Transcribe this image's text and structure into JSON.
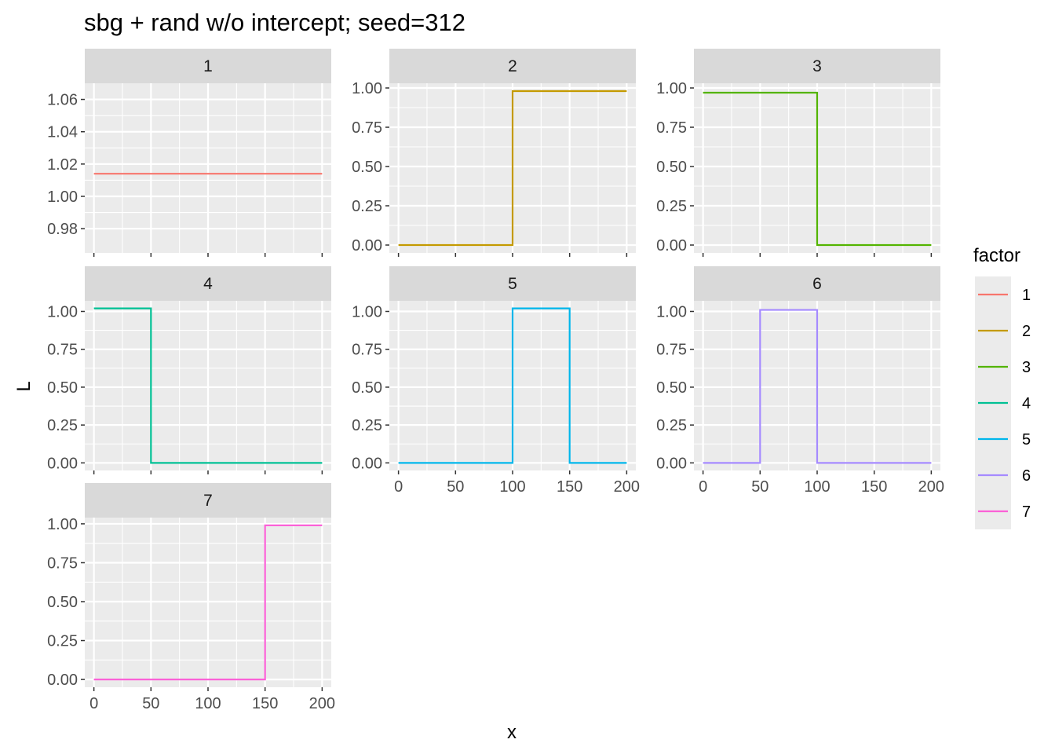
{
  "chart_data": {
    "type": "line",
    "title": "sbg + rand w/o intercept; seed=312",
    "xlabel": "x",
    "ylabel": "L",
    "facets": [
      {
        "label": "1",
        "color": "#F8766D",
        "ylim": [
          0.965,
          1.07
        ],
        "yticks": [
          0.98,
          1.0,
          1.02,
          1.04,
          1.06
        ],
        "yticklabels": [
          "0.98",
          "1.00",
          "1.02",
          "1.04",
          "1.06"
        ],
        "x": [
          0,
          200
        ],
        "y": [
          1.014,
          1.014
        ]
      },
      {
        "label": "2",
        "color": "#C49A00",
        "ylim": [
          -0.05,
          1.03
        ],
        "yticks": [
          0,
          0.25,
          0.5,
          0.75,
          1.0
        ],
        "yticklabels": [
          "0.00",
          "0.25",
          "0.50",
          "0.75",
          "1.00"
        ],
        "x": [
          0,
          100,
          100,
          200
        ],
        "y": [
          0.0,
          0.0,
          0.98,
          0.98
        ]
      },
      {
        "label": "3",
        "color": "#53B400",
        "ylim": [
          -0.05,
          1.03
        ],
        "yticks": [
          0,
          0.25,
          0.5,
          0.75,
          1.0
        ],
        "yticklabels": [
          "0.00",
          "0.25",
          "0.50",
          "0.75",
          "1.00"
        ],
        "x": [
          0,
          100,
          100,
          200
        ],
        "y": [
          0.97,
          0.97,
          0.0,
          0.0
        ]
      },
      {
        "label": "4",
        "color": "#00C094",
        "ylim": [
          -0.05,
          1.07
        ],
        "yticks": [
          0,
          0.25,
          0.5,
          0.75,
          1.0
        ],
        "yticklabels": [
          "0.00",
          "0.25",
          "0.50",
          "0.75",
          "1.00"
        ],
        "x": [
          0,
          50,
          50,
          200
        ],
        "y": [
          1.02,
          1.02,
          0.0,
          0.0
        ]
      },
      {
        "label": "5",
        "color": "#00B6EB",
        "ylim": [
          -0.05,
          1.07
        ],
        "yticks": [
          0,
          0.25,
          0.5,
          0.75,
          1.0
        ],
        "yticklabels": [
          "0.00",
          "0.25",
          "0.50",
          "0.75",
          "1.00"
        ],
        "x": [
          0,
          100,
          100,
          150,
          150,
          200
        ],
        "y": [
          0.0,
          0.0,
          1.02,
          1.02,
          0.0,
          0.0
        ]
      },
      {
        "label": "6",
        "color": "#A58AFF",
        "ylim": [
          -0.05,
          1.07
        ],
        "yticks": [
          0,
          0.25,
          0.5,
          0.75,
          1.0
        ],
        "yticklabels": [
          "0.00",
          "0.25",
          "0.50",
          "0.75",
          "1.00"
        ],
        "x": [
          0,
          50,
          50,
          100,
          100,
          200
        ],
        "y": [
          0.0,
          0.0,
          1.01,
          1.01,
          0.0,
          0.0
        ]
      },
      {
        "label": "7",
        "color": "#FB61D7",
        "ylim": [
          -0.05,
          1.04
        ],
        "yticks": [
          0,
          0.25,
          0.5,
          0.75,
          1.0
        ],
        "yticklabels": [
          "0.00",
          "0.25",
          "0.50",
          "0.75",
          "1.00"
        ],
        "x": [
          0,
          150,
          150,
          200
        ],
        "y": [
          0.0,
          0.0,
          0.99,
          0.99
        ]
      }
    ],
    "xlim": [
      -8,
      208
    ],
    "xticks": [
      0,
      50,
      100,
      150,
      200
    ],
    "xticklabels": [
      "0",
      "50",
      "100",
      "150",
      "200"
    ],
    "grid": true,
    "legend": {
      "title": "factor",
      "position": "right",
      "labels": [
        "1",
        "2",
        "3",
        "4",
        "5",
        "6",
        "7"
      ],
      "colors": [
        "#F8766D",
        "#C49A00",
        "#53B400",
        "#00C094",
        "#00B6EB",
        "#A58AFF",
        "#FB61D7"
      ]
    }
  }
}
